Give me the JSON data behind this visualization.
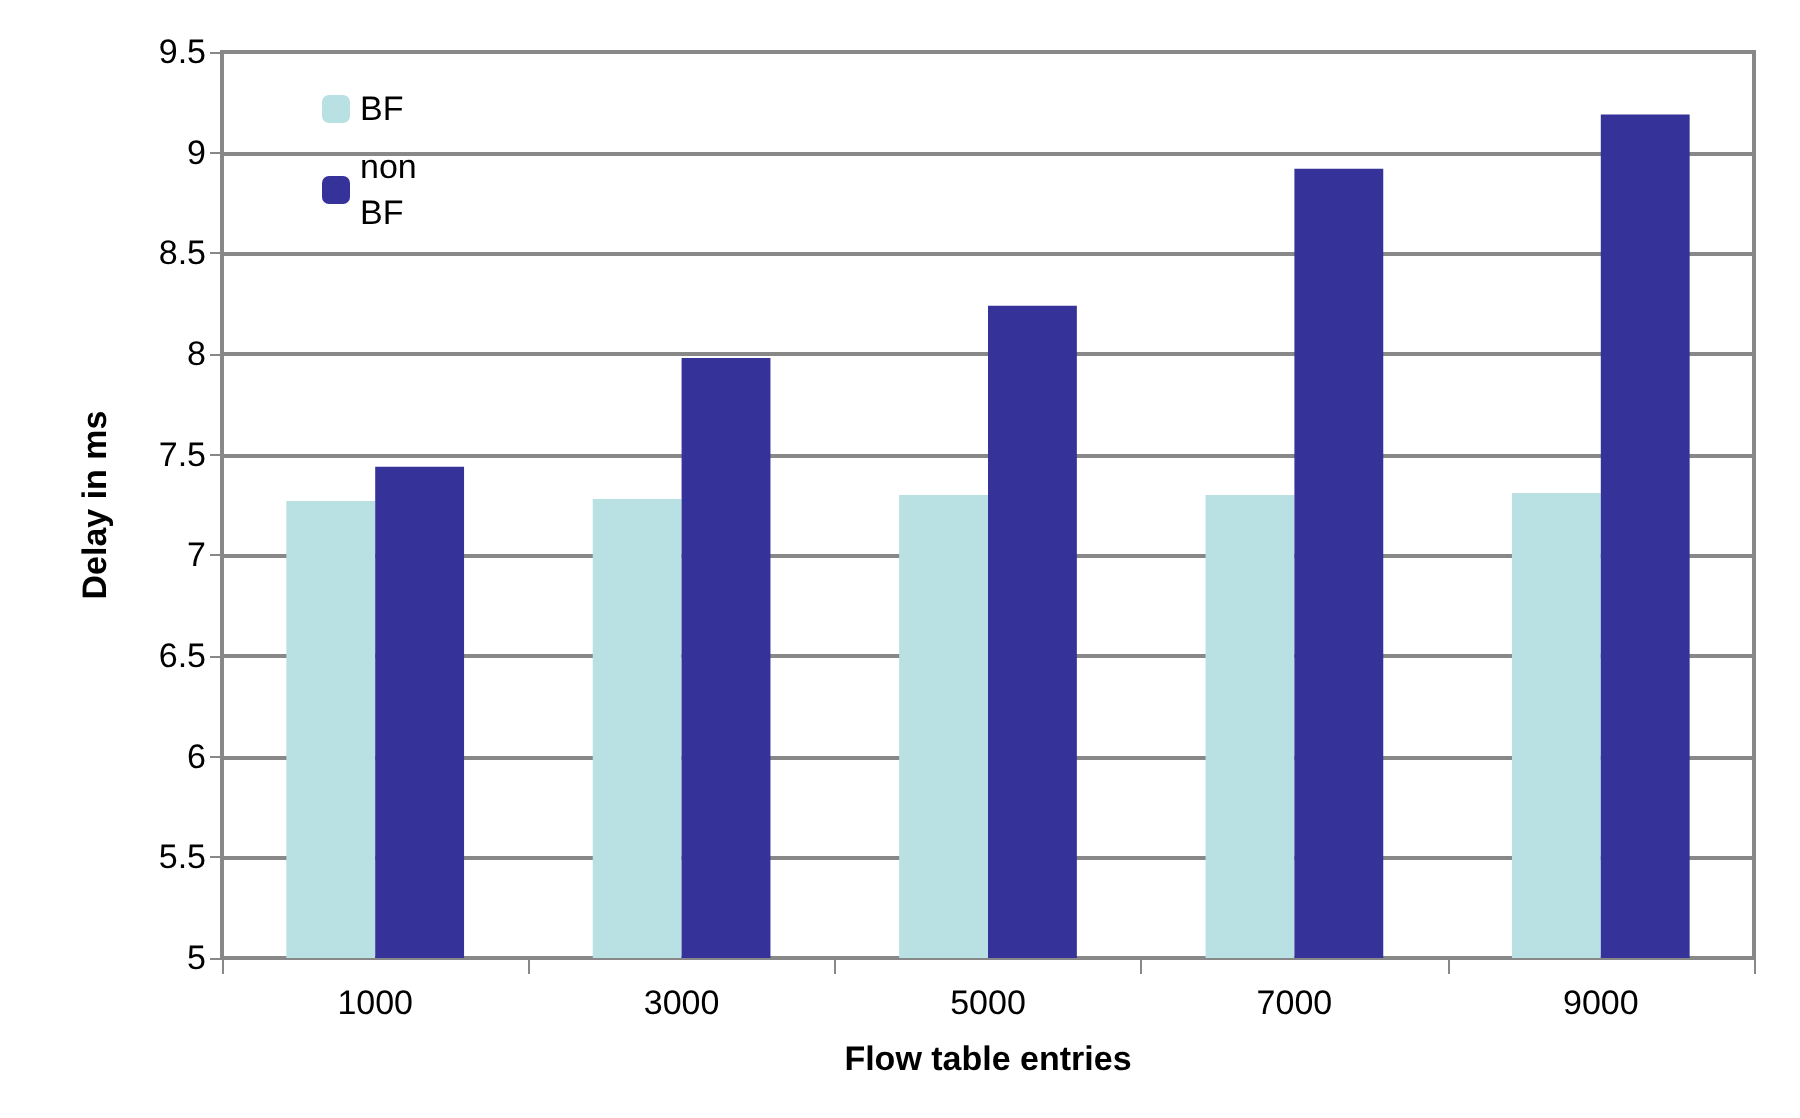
{
  "chart_data": {
    "type": "bar",
    "xlabel": "Flow table entries",
    "ylabel": "Delay in ms",
    "categories": [
      "1000",
      "3000",
      "5000",
      "7000",
      "9000"
    ],
    "series": [
      {
        "name": "BF",
        "color": "#b9e0e3",
        "values": [
          7.27,
          7.28,
          7.3,
          7.3,
          7.31
        ]
      },
      {
        "name": "non BF",
        "color": "#353399",
        "values": [
          7.44,
          7.98,
          8.24,
          8.92,
          9.19
        ]
      }
    ],
    "ylim": [
      5,
      9.5
    ],
    "yticks": [
      5,
      5.5,
      6,
      6.5,
      7,
      7.5,
      8,
      8.5,
      9,
      9.5
    ],
    "grid": "y",
    "legend": "top left"
  }
}
